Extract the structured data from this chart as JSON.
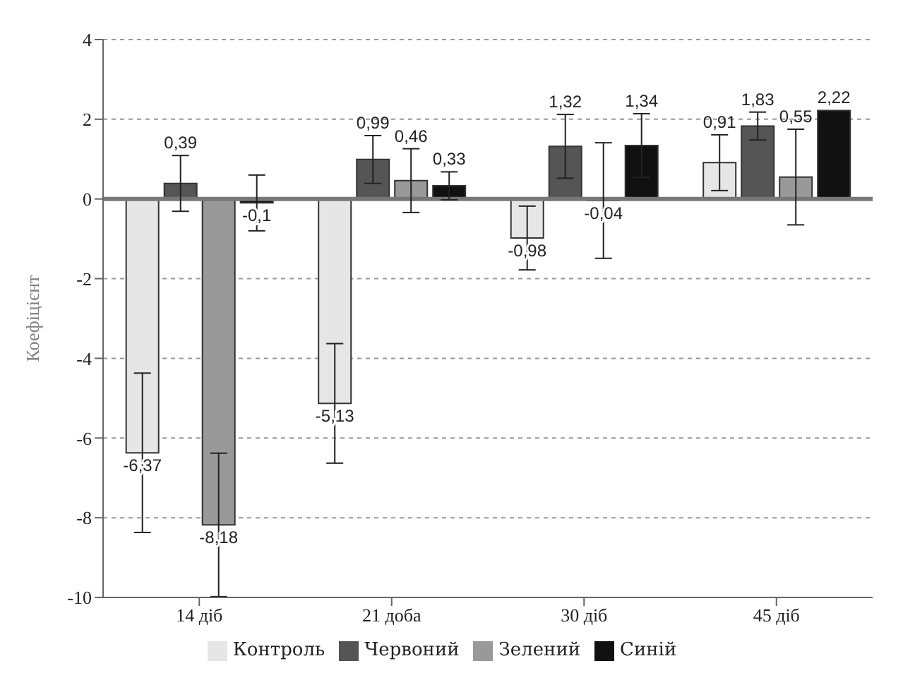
{
  "chart_data": {
    "type": "bar",
    "ylabel": "Коефіцієнт",
    "categories": [
      "14 діб",
      "21 доба",
      "30 діб",
      "45 діб"
    ],
    "series": [
      {
        "name": "Контроль",
        "color": "#e6e6e6",
        "values": [
          -6.37,
          -5.13,
          -0.98,
          0.91
        ],
        "errors": [
          2,
          1.5,
          0.8,
          0.7
        ],
        "value_labels": [
          "-6,37",
          "-5,13",
          "-0,98",
          "0,91"
        ]
      },
      {
        "name": "Червоний",
        "color": "#555555",
        "values": [
          0.39,
          0.99,
          1.32,
          1.83
        ],
        "errors": [
          0.7,
          0.6,
          0.8,
          0.35
        ],
        "value_labels": [
          "0,39",
          "0,99",
          "1,32",
          "1,83"
        ]
      },
      {
        "name": "Зелений",
        "color": "#999999",
        "values": [
          -8.18,
          0.46,
          -0.04,
          0.55
        ],
        "errors": [
          1.8,
          0.8,
          1.45,
          1.2
        ],
        "value_labels": [
          "-8,18",
          "0,46",
          "-0,04",
          "0,55"
        ]
      },
      {
        "name": "Синій",
        "color": "#111111",
        "values": [
          -0.1,
          0.33,
          1.34,
          2.22
        ],
        "errors": [
          0.7,
          0.35,
          0.8,
          null
        ],
        "value_labels": [
          "-0,1",
          "0,33",
          "1,34",
          "2,22"
        ]
      }
    ],
    "ylim": [
      -10,
      4
    ],
    "yticks": [
      -10,
      -8,
      -6,
      -4,
      -2,
      0,
      2,
      4
    ],
    "grid": "y",
    "legend": "bottom"
  }
}
